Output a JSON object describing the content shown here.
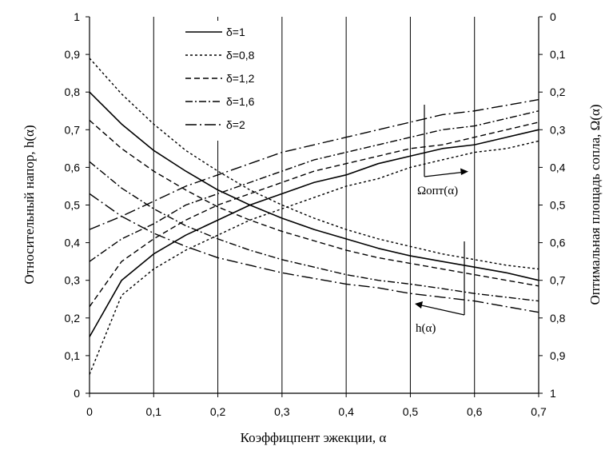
{
  "chart_data": {
    "type": "line",
    "xlabel": "Коэффицпент эжекции, α",
    "ylabel_left": "Относительный напор, h(α)",
    "ylabel_right": "Оптимальная площадь сопла, Ω(α)",
    "xlim": [
      0,
      0.7
    ],
    "ylim_left": [
      0,
      1
    ],
    "ylim_right": [
      1,
      0
    ],
    "x_ticks": [
      "0",
      "0,1",
      "0,2",
      "0,3",
      "0,4",
      "0,5",
      "0,6",
      "0,7"
    ],
    "y_ticks_left": [
      "0",
      "0,1",
      "0,2",
      "0,3",
      "0,4",
      "0,5",
      "0,6",
      "0,7",
      "0,8",
      "0,9",
      "1"
    ],
    "y_ticks_right": [
      "1",
      "0,9",
      "0,8",
      "0,7",
      "0,6",
      "0,5",
      "0,4",
      "0,3",
      "0,2",
      "0,1",
      "0"
    ],
    "grid": "vertical",
    "legend_position": "top-center",
    "legend": [
      {
        "key": "d1",
        "label": "δ=1"
      },
      {
        "key": "d08",
        "label": "δ=0,8"
      },
      {
        "key": "d12",
        "label": "δ=1,2"
      },
      {
        "key": "d16",
        "label": "δ=1,6"
      },
      {
        "key": "d2",
        "label": "δ=2"
      }
    ],
    "styles": {
      "d1": {
        "dash": "",
        "width": 1.6
      },
      "d08": {
        "dash": "3 3",
        "width": 1.4
      },
      "d12": {
        "dash": "7 4",
        "width": 1.4
      },
      "d16": {
        "dash": "9 3 2 3",
        "width": 1.4
      },
      "d2": {
        "dash": "14 4 2 4",
        "width": 1.4
      }
    },
    "x": [
      0,
      0.05,
      0.1,
      0.15,
      0.2,
      0.25,
      0.3,
      0.35,
      0.4,
      0.45,
      0.5,
      0.55,
      0.6,
      0.65,
      0.7
    ],
    "h_series": [
      {
        "key": "d1",
        "values": [
          0.8,
          0.715,
          0.645,
          0.59,
          0.54,
          0.5,
          0.465,
          0.435,
          0.41,
          0.385,
          0.365,
          0.35,
          0.335,
          0.32,
          0.3
        ]
      },
      {
        "key": "d08",
        "values": [
          0.89,
          0.795,
          0.715,
          0.645,
          0.59,
          0.54,
          0.5,
          0.465,
          0.435,
          0.41,
          0.39,
          0.37,
          0.355,
          0.34,
          0.33
        ]
      },
      {
        "key": "d12",
        "values": [
          0.725,
          0.65,
          0.59,
          0.54,
          0.495,
          0.46,
          0.43,
          0.405,
          0.38,
          0.36,
          0.345,
          0.33,
          0.315,
          0.3,
          0.285
        ]
      },
      {
        "key": "d16",
        "values": [
          0.615,
          0.545,
          0.49,
          0.445,
          0.41,
          0.38,
          0.355,
          0.335,
          0.315,
          0.3,
          0.29,
          0.278,
          0.265,
          0.255,
          0.245
        ]
      },
      {
        "key": "d2",
        "values": [
          0.53,
          0.47,
          0.425,
          0.39,
          0.36,
          0.34,
          0.32,
          0.305,
          0.29,
          0.28,
          0.265,
          0.255,
          0.245,
          0.23,
          0.215
        ]
      }
    ],
    "omega_series": [
      {
        "key": "d1",
        "values": [
          0.85,
          0.7,
          0.63,
          0.58,
          0.54,
          0.5,
          0.47,
          0.44,
          0.42,
          0.39,
          0.37,
          0.35,
          0.34,
          0.32,
          0.3
        ]
      },
      {
        "key": "d08",
        "values": [
          0.95,
          0.74,
          0.67,
          0.62,
          0.58,
          0.54,
          0.51,
          0.48,
          0.45,
          0.43,
          0.4,
          0.38,
          0.36,
          0.35,
          0.33
        ]
      },
      {
        "key": "d12",
        "values": [
          0.77,
          0.65,
          0.59,
          0.54,
          0.5,
          0.47,
          0.44,
          0.41,
          0.39,
          0.37,
          0.35,
          0.34,
          0.32,
          0.3,
          0.28
        ]
      },
      {
        "key": "d16",
        "values": [
          0.65,
          0.59,
          0.55,
          0.5,
          0.47,
          0.44,
          0.41,
          0.38,
          0.36,
          0.34,
          0.32,
          0.3,
          0.29,
          0.27,
          0.25
        ]
      },
      {
        "key": "d2",
        "values": [
          0.565,
          0.53,
          0.49,
          0.45,
          0.42,
          0.39,
          0.36,
          0.34,
          0.32,
          0.3,
          0.28,
          0.26,
          0.25,
          0.235,
          0.22
        ]
      }
    ],
    "annotations": {
      "omega_label": "Ωопт(α)",
      "h_label": "h(α)"
    }
  }
}
